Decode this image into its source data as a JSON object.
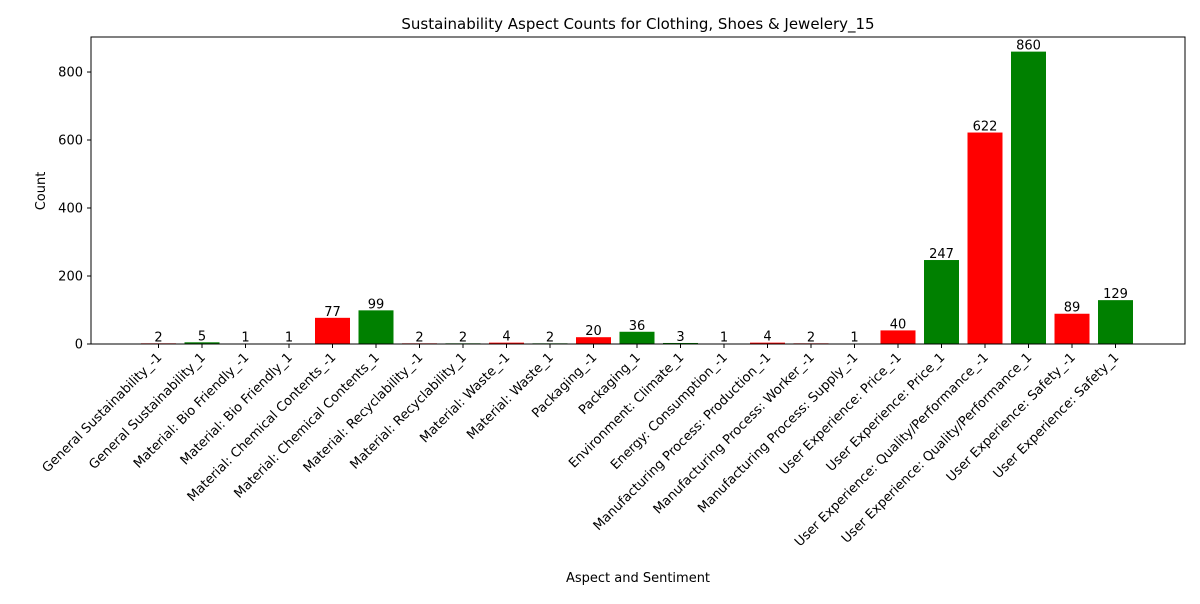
{
  "chart_data": {
    "type": "bar",
    "title": "Sustainability Aspect Counts for Clothing, Shoes & Jewelery_15",
    "xlabel": "Aspect and Sentiment",
    "ylabel": "Count",
    "ylim": [
      0,
      903
    ],
    "yticks": [
      0,
      200,
      400,
      600,
      800
    ],
    "grid": false,
    "categories": [
      "General Sustainability_-1",
      "General Sustainability_1",
      "Material: Bio Friendly_-1",
      "Material: Bio Friendly_1",
      "Material: Chemical Contents_-1",
      "Material: Chemical Contents_1",
      "Material: Recyclability_-1",
      "Material: Recyclability_1",
      "Material: Waste_-1",
      "Material: Waste_1",
      "Packaging_-1",
      "Packaging_1",
      "Environment: Climate_1",
      "Energy: Consumption_-1",
      "Manufacturing Process: Production_-1",
      "Manufacturing Process: Worker_-1",
      "Manufacturing Process: Supply_-1",
      "User Experience: Price_-1",
      "User Experience: Price_1",
      "User Experience: Quality/Performance_-1",
      "User Experience: Quality/Performance_1",
      "User Experience: Safety_-1",
      "User Experience: Safety_1"
    ],
    "values": [
      2,
      5,
      1,
      1,
      77,
      99,
      2,
      2,
      4,
      2,
      20,
      36,
      3,
      1,
      4,
      2,
      1,
      40,
      247,
      622,
      860,
      89,
      129
    ],
    "colors": {
      "negative": "#ff0000",
      "positive": "#008000"
    },
    "bar_colors": [
      "negative",
      "positive",
      "negative",
      "positive",
      "negative",
      "positive",
      "negative",
      "positive",
      "negative",
      "positive",
      "negative",
      "positive",
      "positive",
      "negative",
      "negative",
      "negative",
      "negative",
      "negative",
      "positive",
      "negative",
      "positive",
      "negative",
      "positive"
    ]
  }
}
